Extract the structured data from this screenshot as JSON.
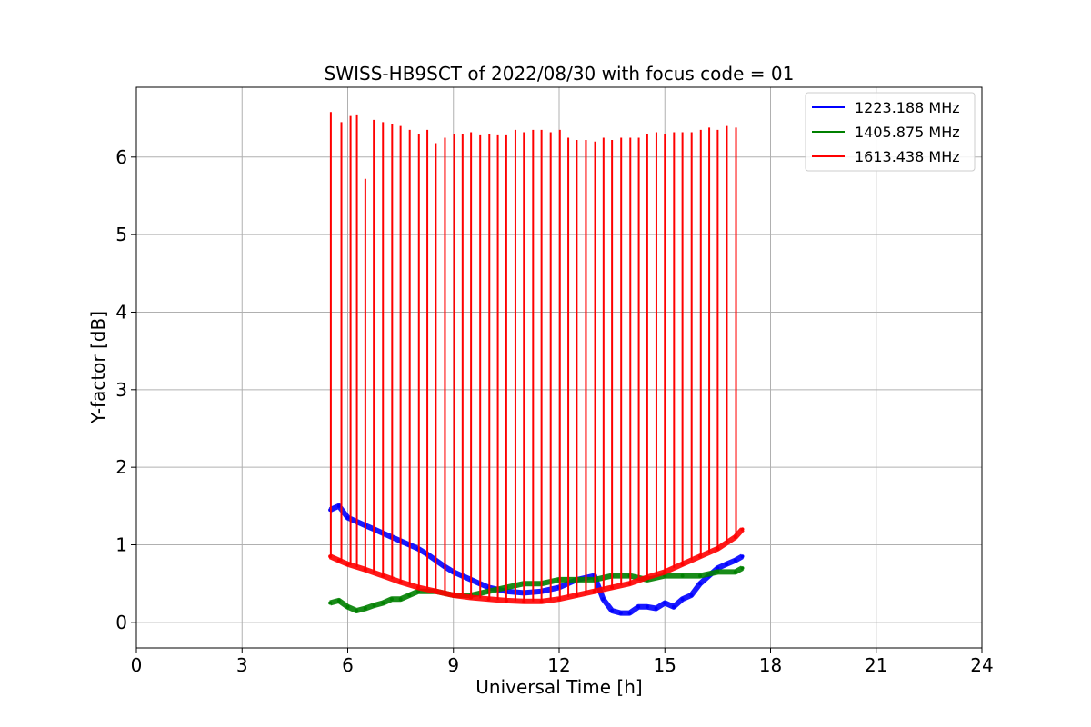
{
  "chart_data": {
    "type": "line",
    "title": "SWISS-HB9SCT of 2022/08/30 with focus code = 01",
    "xlabel": "Universal Time [h]",
    "ylabel": "Y-factor [dB]",
    "xlim": [
      0,
      24
    ],
    "ylim": [
      -0.33,
      6.9
    ],
    "xticks": [
      0,
      3,
      6,
      9,
      12,
      15,
      18,
      21,
      24
    ],
    "yticks": [
      0,
      1,
      2,
      3,
      4,
      5,
      6
    ],
    "grid": true,
    "legend_position": "top-right",
    "series": [
      {
        "name": "1223.188 MHz",
        "color": "#0000ff",
        "x": [
          5.5,
          5.75,
          6.0,
          6.25,
          6.5,
          6.75,
          7.0,
          7.25,
          7.5,
          7.75,
          8.0,
          8.25,
          8.5,
          8.75,
          9.0,
          9.25,
          9.5,
          9.75,
          10.0,
          10.5,
          11.0,
          11.5,
          12.0,
          12.5,
          13.0,
          13.25,
          13.5,
          13.75,
          14.0,
          14.25,
          14.5,
          14.75,
          15.0,
          15.25,
          15.5,
          15.75,
          16.0,
          16.25,
          16.5,
          16.75,
          17.0,
          17.2
        ],
        "y": [
          1.45,
          1.5,
          1.35,
          1.3,
          1.25,
          1.2,
          1.15,
          1.1,
          1.05,
          1.0,
          0.95,
          0.88,
          0.8,
          0.72,
          0.65,
          0.6,
          0.55,
          0.5,
          0.45,
          0.4,
          0.38,
          0.4,
          0.45,
          0.55,
          0.6,
          0.3,
          0.15,
          0.12,
          0.12,
          0.2,
          0.2,
          0.18,
          0.25,
          0.2,
          0.3,
          0.35,
          0.5,
          0.6,
          0.7,
          0.75,
          0.8,
          0.85
        ]
      },
      {
        "name": "1405.875 MHz",
        "color": "#008000",
        "x": [
          5.5,
          5.75,
          6.0,
          6.25,
          6.5,
          6.75,
          7.0,
          7.25,
          7.5,
          7.75,
          8.0,
          8.5,
          9.0,
          9.5,
          10.0,
          10.5,
          11.0,
          11.5,
          12.0,
          12.5,
          13.0,
          13.5,
          14.0,
          14.5,
          15.0,
          15.5,
          16.0,
          16.5,
          17.0,
          17.2
        ],
        "y": [
          0.25,
          0.28,
          0.2,
          0.15,
          0.18,
          0.22,
          0.25,
          0.3,
          0.3,
          0.35,
          0.4,
          0.4,
          0.35,
          0.35,
          0.4,
          0.45,
          0.5,
          0.5,
          0.55,
          0.55,
          0.55,
          0.6,
          0.6,
          0.55,
          0.6,
          0.6,
          0.6,
          0.65,
          0.65,
          0.7
        ]
      },
      {
        "name": "1613.438 MHz",
        "color": "#ff0000",
        "x": [
          5.5,
          5.75,
          6.0,
          6.5,
          7.0,
          7.5,
          8.0,
          8.5,
          9.0,
          9.5,
          10.0,
          10.5,
          11.0,
          11.5,
          12.0,
          12.5,
          13.0,
          13.5,
          14.0,
          14.5,
          15.0,
          15.5,
          16.0,
          16.5,
          17.0,
          17.2
        ],
        "y": [
          0.85,
          0.8,
          0.75,
          0.68,
          0.6,
          0.52,
          0.45,
          0.4,
          0.35,
          0.32,
          0.3,
          0.28,
          0.27,
          0.27,
          0.3,
          0.35,
          0.4,
          0.45,
          0.5,
          0.58,
          0.65,
          0.75,
          0.85,
          0.95,
          1.1,
          1.2
        ],
        "spikes": {
          "x": [
            5.52,
            5.82,
            6.08,
            6.26,
            6.5,
            6.74,
            7.0,
            7.26,
            7.5,
            7.76,
            8.02,
            8.26,
            8.5,
            8.76,
            9.02,
            9.26,
            9.5,
            9.76,
            10.02,
            10.26,
            10.5,
            10.76,
            11.0,
            11.26,
            11.5,
            11.76,
            12.02,
            12.26,
            12.5,
            12.76,
            13.02,
            13.26,
            13.5,
            13.76,
            14.02,
            14.26,
            14.5,
            14.76,
            15.0,
            15.26,
            15.5,
            15.76,
            16.02,
            16.26,
            16.5,
            16.76,
            17.02
          ],
          "y": [
            6.58,
            6.45,
            6.53,
            6.55,
            5.72,
            6.48,
            6.45,
            6.43,
            6.4,
            6.35,
            6.3,
            6.35,
            6.18,
            6.25,
            6.3,
            6.3,
            6.32,
            6.28,
            6.3,
            6.28,
            6.28,
            6.35,
            6.32,
            6.35,
            6.35,
            6.32,
            6.35,
            6.25,
            6.22,
            6.22,
            6.2,
            6.25,
            6.22,
            6.25,
            6.25,
            6.25,
            6.3,
            6.32,
            6.3,
            6.32,
            6.32,
            6.32,
            6.35,
            6.38,
            6.35,
            6.4,
            6.38
          ]
        }
      }
    ]
  }
}
